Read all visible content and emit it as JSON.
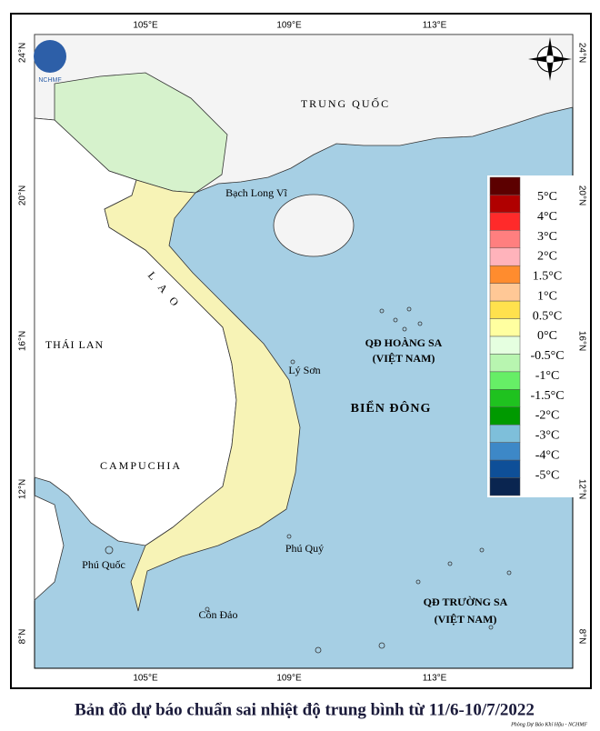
{
  "logo": "NCHMF",
  "axes": {
    "top": [
      "105°E",
      "109°E",
      "113°E"
    ],
    "bottom": [
      "105°E",
      "109°E",
      "113°E"
    ],
    "left": [
      "24°N",
      "20°N",
      "16°N",
      "12°N",
      "8°N"
    ],
    "right": [
      "24°N",
      "20°N",
      "16°N",
      "12°N",
      "8°N"
    ]
  },
  "places": {
    "china": "TRUNG QUỐC",
    "bach_long_vi": "Bạch Long Vĩ",
    "laos": "L A O",
    "thailand": "THÁI LAN",
    "cambodia": "CAMPUCHIA",
    "hoang_sa": "QĐ HOÀNG SA",
    "hoang_sa_country": "(VIỆT NAM)",
    "ly_son": "Lý Sơn",
    "bien_dong": "BIỂN ĐÔNG",
    "phu_quy": "Phú Quý",
    "phu_quoc": "Phú Quốc",
    "con_dao": "Côn Đảo",
    "truong_sa": "QĐ TRƯỜNG SA",
    "truong_sa_country": "(VIỆT NAM)"
  },
  "legend": {
    "labels": [
      "5°C",
      "4°C",
      "3°C",
      "2°C",
      "1.5°C",
      "1°C",
      "0.5°C",
      "0°C",
      "-0.5°C",
      "-1°C",
      "-1.5°C",
      "-2°C",
      "-3°C",
      "-4°C",
      "-5°C"
    ],
    "colors": [
      "#5c0000",
      "#b00000",
      "#ff2a2a",
      "#ff7f7f",
      "#ffb3bb",
      "#ff8c2e",
      "#ffc896",
      "#ffe14d",
      "#ffffa0",
      "#e5ffe0",
      "#b8f5b0",
      "#66ee66",
      "#1fc21f",
      "#009a00",
      "#7ebfda",
      "#3d88c7",
      "#0e4f98",
      "#0a2550"
    ]
  },
  "title": "Bản đồ dự báo chuẩn sai nhiệt độ trung bình từ 11/6-10/7/2022",
  "credit": "Phòng Dự Báo Khí Hậu - NCHMF"
}
